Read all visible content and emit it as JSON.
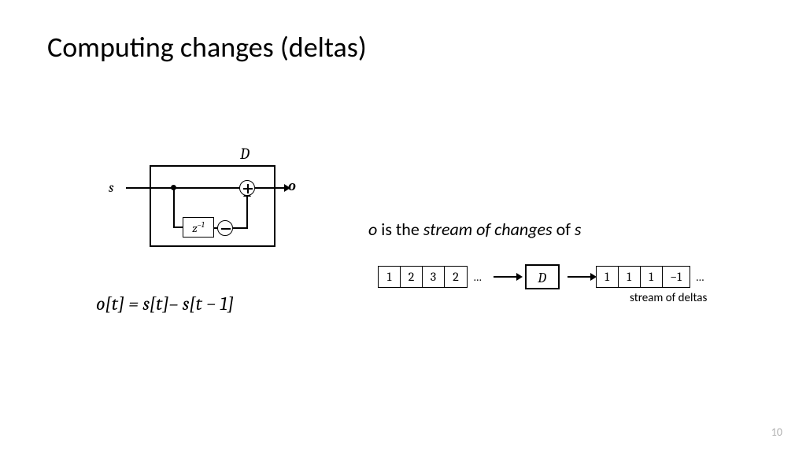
{
  "title": "Computing changes (deltas)",
  "page_number": "10",
  "diagram": {
    "outer_label": "D",
    "input_label": "s",
    "output_label": "o",
    "delay_box_html": "z<sup>−1</sup>",
    "box_border_color": "#000000",
    "background": "#ffffff"
  },
  "equation_html": "o[t] = s[t]– s[t − 1]",
  "description_parts": {
    "o": "o",
    "mid1": " is the ",
    "stream": "stream of changes",
    "mid2": " of ",
    "s": "s"
  },
  "stream": {
    "input_cells": [
      "1",
      "2",
      "3",
      "2"
    ],
    "ellipsis": "…",
    "operator_label": "D",
    "output_cells": [
      "1",
      "1",
      "1",
      "−1"
    ],
    "caption": "stream of deltas",
    "cell_border_color": "#000000",
    "font_family": "Cambria"
  },
  "colors": {
    "text": "#000000",
    "page_number": "#b0b0b0",
    "background": "#ffffff"
  }
}
